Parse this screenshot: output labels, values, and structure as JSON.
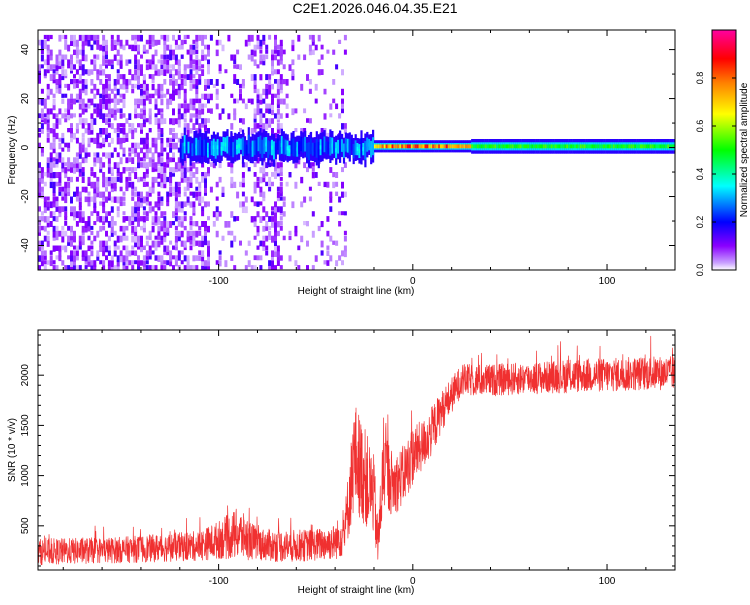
{
  "chart_data": [
    {
      "type": "heatmap",
      "title": "C2E1.2026.046.04.35.E21",
      "xlabel": "Height of straight line (km)",
      "ylabel": "Frequency (Hz)",
      "xlim": [
        -193,
        135
      ],
      "ylim": [
        -50,
        48
      ],
      "xticks": [
        -100,
        0,
        100
      ],
      "xtick_labels": [
        "-100",
        "0",
        "100"
      ],
      "yticks": [
        -40,
        -20,
        0,
        20,
        40
      ],
      "ytick_labels": [
        "-40",
        "-20",
        "0",
        "20",
        "40"
      ],
      "colorbar": {
        "label": "Normalized spectral amplitude",
        "range": [
          0,
          1
        ],
        "ticks": [
          0.0,
          0.2,
          0.4,
          0.6,
          0.8
        ],
        "tick_labels": [
          "0.0",
          "0.2",
          "0.4",
          "0.6",
          "0.8"
        ],
        "colors": [
          "#ffffff",
          "#8a00ff",
          "#0000ff",
          "#00ffff",
          "#00ff00",
          "#ffff00",
          "#ff8000",
          "#ff0000",
          "#ff00a0"
        ]
      },
      "features": {
        "noise_region_x": [
          -193,
          -35
        ],
        "tracking_line_x": [
          -120,
          135
        ],
        "tracking_line_freq": 0,
        "strongest_segment_x": [
          -20,
          30
        ]
      }
    },
    {
      "type": "line",
      "xlabel": "Height of straight line (km)",
      "ylabel": "SNR (10 * v/v)",
      "xlim": [
        -193,
        135
      ],
      "ylim": [
        60,
        2450
      ],
      "xticks": [
        -100,
        0,
        100
      ],
      "xtick_labels": [
        "-100",
        "0",
        "100"
      ],
      "yticks": [
        500,
        1000,
        1500,
        2000
      ],
      "ytick_labels": [
        "500",
        "1000",
        "1500",
        "2000"
      ],
      "color": "#f03030",
      "series": [
        {
          "name": "SNR",
          "x": [
            -193,
            -170,
            -150,
            -130,
            -110,
            -100,
            -90,
            -80,
            -70,
            -60,
            -50,
            -40,
            -35,
            -30,
            -25,
            -20,
            -18,
            -15,
            -10,
            -5,
            0,
            5,
            10,
            15,
            20,
            25,
            30,
            40,
            50,
            60,
            70,
            80,
            90,
            100,
            110,
            120,
            135
          ],
          "baseline": [
            240,
            250,
            260,
            280,
            300,
            360,
            420,
            320,
            300,
            300,
            310,
            340,
            450,
            1200,
            1000,
            800,
            300,
            1100,
            900,
            1000,
            1200,
            1300,
            1450,
            1650,
            1800,
            1950,
            1950,
            1950,
            1960,
            1970,
            1980,
            1990,
            2000,
            2000,
            2010,
            2020,
            2020
          ],
          "spread": [
            130,
            130,
            130,
            140,
            150,
            190,
            260,
            160,
            160,
            160,
            160,
            180,
            250,
            550,
            500,
            400,
            250,
            450,
            300,
            300,
            300,
            250,
            250,
            200,
            180,
            160,
            160,
            160,
            160,
            160,
            160,
            170,
            170,
            170,
            170,
            170,
            170
          ]
        }
      ]
    }
  ]
}
